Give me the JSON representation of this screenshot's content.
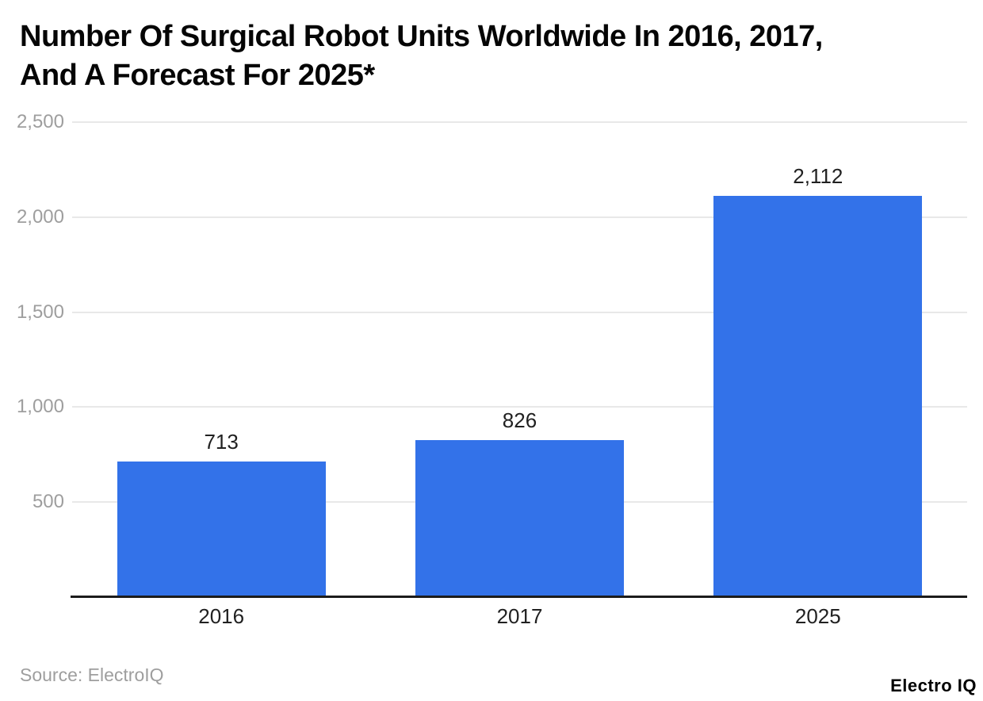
{
  "title_lines": [
    "Number Of Surgical Robot Units Worldwide In 2016, 2017,",
    "And A Forecast For 2025*"
  ],
  "footer": {
    "source": "Source: ElectroIQ",
    "brand": "Electro IQ"
  },
  "colors": {
    "bar": "#3372e9",
    "grid": "#e8e8e8",
    "axis": "#1c1c1c",
    "ytick_label": "#9e9e9e",
    "value_label": "#212121",
    "xtick_label": "#212121",
    "title": "#050505",
    "background": "#ffffff"
  },
  "chart_data": {
    "type": "bar",
    "title": "Number Of Surgical Robot Units Worldwide In 2016, 2017, And A Forecast For 2025*",
    "categories": [
      "2016",
      "2017",
      "2025"
    ],
    "values": [
      713,
      826,
      2112
    ],
    "value_labels": [
      "713",
      "826",
      "2,112"
    ],
    "xlabel": "",
    "ylabel": "",
    "ylim": [
      0,
      2500
    ],
    "yticks": [
      500,
      1000,
      1500,
      2000,
      2500
    ],
    "ytick_labels": [
      "500",
      "1,000",
      "1,500",
      "2,000",
      "2,500"
    ],
    "grid": true,
    "legend": "none",
    "bar_color": "#3372e9",
    "source": "ElectroIQ"
  }
}
